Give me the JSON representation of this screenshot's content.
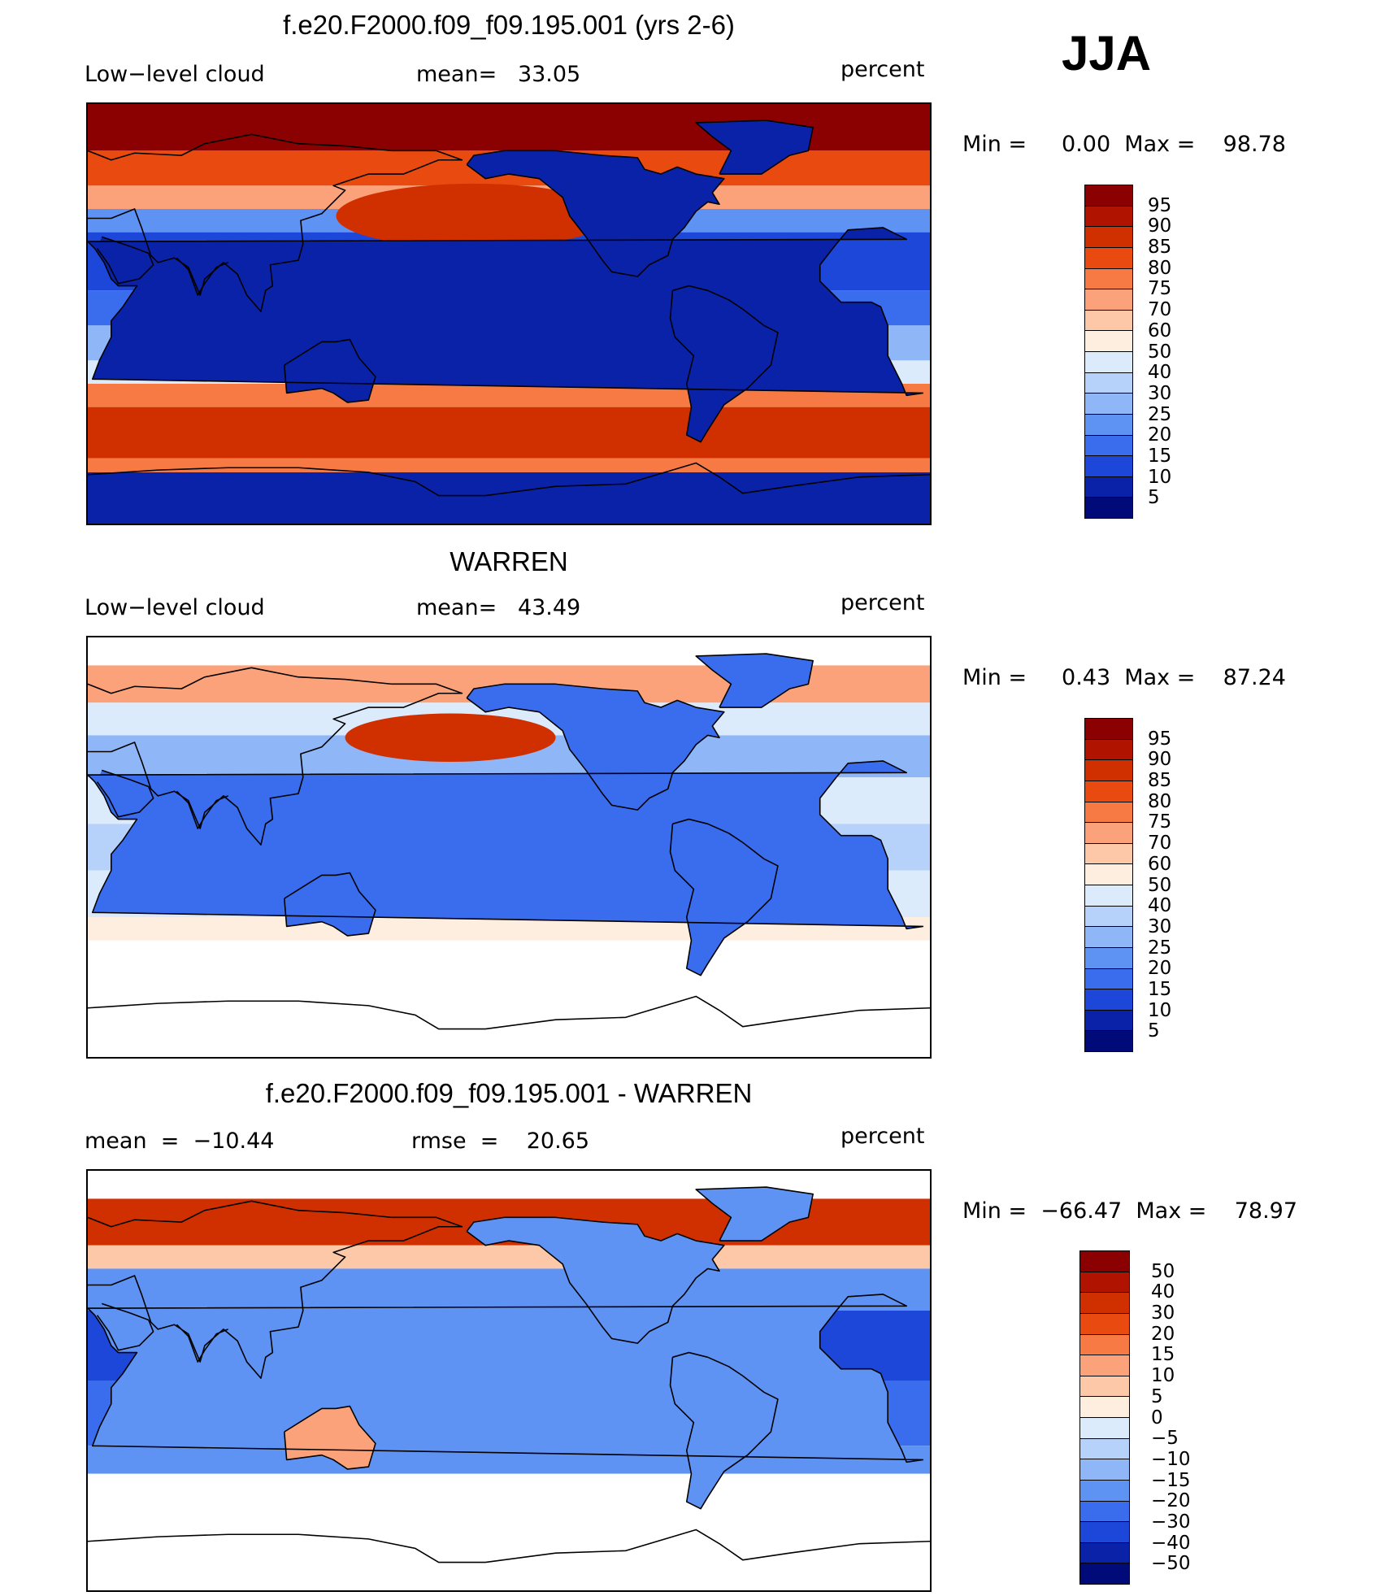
{
  "season": "JJA",
  "panels": [
    {
      "title": "f.e20.F2000.f09_f09.195.001 (yrs 2-6)",
      "left_label": "Low−level cloud",
      "center_label": "mean=   33.05",
      "right_label": "percent",
      "minmax": "Min =     0.00  Max =    98.78",
      "kind": "model"
    },
    {
      "title": "WARREN",
      "left_label": "Low−level cloud",
      "center_label": "mean=   43.49",
      "right_label": "percent",
      "minmax": "Min =     0.43  Max =    87.24",
      "kind": "obs"
    },
    {
      "title": "f.e20.F2000.f09_f09.195.001 - WARREN",
      "left_label": "mean  =  −10.44",
      "center_label": "rmse  =    20.65",
      "right_label": "percent",
      "minmax": "Min =  −66.47  Max =    78.97",
      "kind": "diff"
    }
  ],
  "colorbars": [
    {
      "labels": [
        "95",
        "90",
        "85",
        "80",
        "75",
        "70",
        "60",
        "50",
        "40",
        "30",
        "25",
        "20",
        "15",
        "10",
        "5"
      ],
      "colors": [
        "#8b0000",
        "#b01400",
        "#d03000",
        "#e84a10",
        "#f77a45",
        "#fba27a",
        "#fcc8a8",
        "#feeedf",
        "#dcebfb",
        "#b7d2fa",
        "#8fb6f7",
        "#5e92f3",
        "#3a6cee",
        "#1c47d8",
        "#0a22a8",
        "#000a78"
      ]
    },
    {
      "labels": [
        "95",
        "90",
        "85",
        "80",
        "75",
        "70",
        "60",
        "50",
        "40",
        "30",
        "25",
        "20",
        "15",
        "10",
        "5"
      ],
      "colors": [
        "#8b0000",
        "#b01400",
        "#d03000",
        "#e84a10",
        "#f77a45",
        "#fba27a",
        "#fcc8a8",
        "#feeedf",
        "#dcebfb",
        "#b7d2fa",
        "#8fb6f7",
        "#5e92f3",
        "#3a6cee",
        "#1c47d8",
        "#0a22a8",
        "#000a78"
      ]
    },
    {
      "labels": [
        "50",
        "40",
        "30",
        "20",
        "15",
        "10",
        "5",
        "0",
        "−5",
        "−10",
        "−15",
        "−20",
        "−30",
        "−40",
        "−50"
      ],
      "colors": [
        "#8b0000",
        "#b01400",
        "#d03000",
        "#e84a10",
        "#f77a45",
        "#fba27a",
        "#fcc8a8",
        "#feeedf",
        "#dcebfb",
        "#b7d2fa",
        "#8fb6f7",
        "#5e92f3",
        "#3a6cee",
        "#1c47d8",
        "#0a22a8",
        "#000a78"
      ]
    }
  ]
}
